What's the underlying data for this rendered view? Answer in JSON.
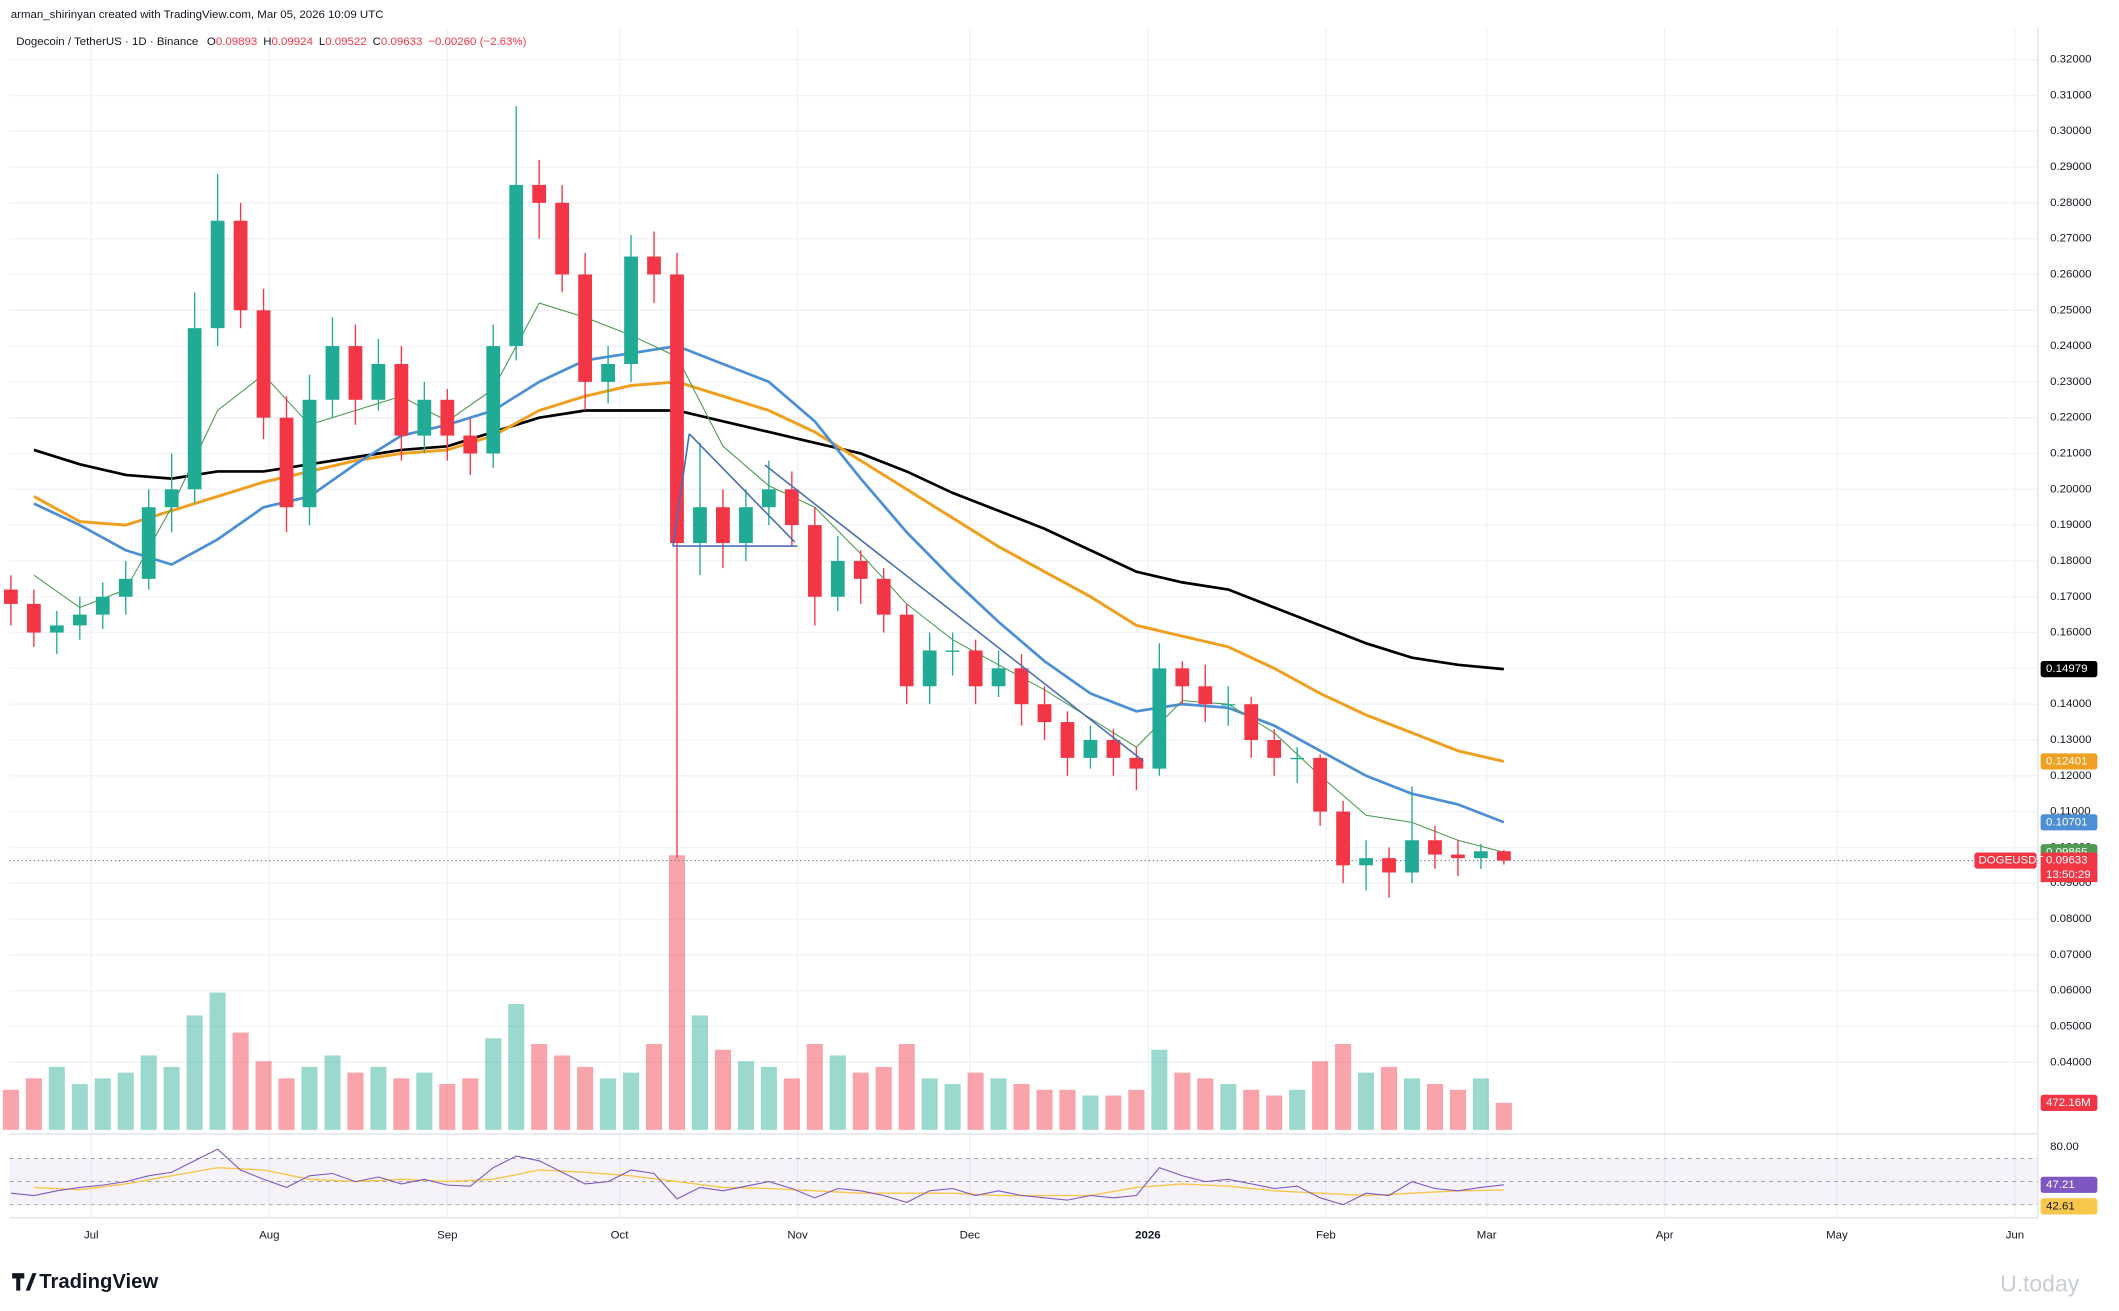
{
  "header": {
    "credit": "arman_shirinyan created with TradingView.com, Mar 05, 2026 10:09 UTC",
    "symbol": "Dogecoin / TetherUS · 1D · Binance",
    "ohlc": [
      {
        "key": "O",
        "value": "0.09893"
      },
      {
        "key": "H",
        "value": "0.09924"
      },
      {
        "key": "L",
        "value": "0.09522"
      },
      {
        "key": "C",
        "value": "0.09633"
      }
    ],
    "change": "−0.00260 (−2.63%)"
  },
  "chart_data": {
    "type": "candlestick",
    "x": [
      0,
      4,
      8,
      12,
      16,
      20,
      24,
      28,
      32,
      36,
      40,
      44,
      48,
      52,
      56,
      60,
      64,
      68,
      72,
      76,
      80,
      84,
      88,
      92,
      96,
      100,
      104,
      108,
      112,
      116,
      120,
      124,
      128,
      132,
      136,
      140,
      144,
      148,
      152,
      156,
      160,
      164,
      168,
      172,
      176,
      180,
      184,
      188,
      192,
      196,
      200,
      204,
      208,
      212,
      216,
      220,
      224,
      228,
      232,
      236,
      240,
      244,
      248,
      252,
      256,
      260
    ],
    "open": [
      0.172,
      0.168,
      0.16,
      0.162,
      0.165,
      0.17,
      0.175,
      0.195,
      0.2,
      0.245,
      0.275,
      0.25,
      0.22,
      0.195,
      0.225,
      0.24,
      0.225,
      0.235,
      0.215,
      0.225,
      0.215,
      0.21,
      0.24,
      0.285,
      0.28,
      0.26,
      0.23,
      0.235,
      0.265,
      0.26,
      0.185,
      0.195,
      0.185,
      0.195,
      0.2,
      0.19,
      0.17,
      0.18,
      0.175,
      0.165,
      0.145,
      0.155,
      0.155,
      0.145,
      0.15,
      0.14,
      0.135,
      0.125,
      0.13,
      0.125,
      0.122,
      0.15,
      0.145,
      0.14,
      0.14,
      0.13,
      0.125,
      0.125,
      0.11,
      0.095,
      0.097,
      0.093,
      0.102,
      0.098,
      0.097,
      0.09893
    ],
    "high": [
      0.176,
      0.172,
      0.166,
      0.17,
      0.174,
      0.18,
      0.2,
      0.21,
      0.255,
      0.288,
      0.28,
      0.256,
      0.226,
      0.232,
      0.248,
      0.246,
      0.242,
      0.24,
      0.23,
      0.228,
      0.22,
      0.246,
      0.307,
      0.292,
      0.285,
      0.266,
      0.24,
      0.271,
      0.272,
      0.266,
      0.213,
      0.2,
      0.2,
      0.208,
      0.205,
      0.195,
      0.187,
      0.183,
      0.178,
      0.168,
      0.16,
      0.16,
      0.158,
      0.155,
      0.154,
      0.145,
      0.138,
      0.134,
      0.133,
      0.128,
      0.157,
      0.152,
      0.151,
      0.145,
      0.142,
      0.133,
      0.128,
      0.126,
      0.113,
      0.102,
      0.1,
      0.117,
      0.106,
      0.102,
      0.101,
      0.09924
    ],
    "low": [
      0.162,
      0.156,
      0.154,
      0.158,
      0.161,
      0.165,
      0.172,
      0.188,
      0.196,
      0.24,
      0.245,
      0.214,
      0.188,
      0.19,
      0.22,
      0.218,
      0.222,
      0.208,
      0.21,
      0.208,
      0.204,
      0.206,
      0.236,
      0.27,
      0.255,
      0.222,
      0.224,
      0.23,
      0.252,
      0.097,
      0.176,
      0.178,
      0.18,
      0.19,
      0.184,
      0.162,
      0.166,
      0.168,
      0.16,
      0.14,
      0.14,
      0.148,
      0.14,
      0.142,
      0.134,
      0.13,
      0.12,
      0.122,
      0.12,
      0.116,
      0.12,
      0.14,
      0.135,
      0.134,
      0.125,
      0.12,
      0.118,
      0.106,
      0.09,
      0.088,
      0.086,
      0.09,
      0.094,
      0.092,
      0.094,
      0.09522
    ],
    "close": [
      0.168,
      0.16,
      0.162,
      0.165,
      0.17,
      0.175,
      0.195,
      0.2,
      0.245,
      0.275,
      0.25,
      0.22,
      0.195,
      0.225,
      0.24,
      0.225,
      0.235,
      0.215,
      0.225,
      0.215,
      0.21,
      0.24,
      0.285,
      0.28,
      0.26,
      0.23,
      0.235,
      0.265,
      0.26,
      0.185,
      0.195,
      0.185,
      0.195,
      0.2,
      0.19,
      0.17,
      0.18,
      0.175,
      0.165,
      0.145,
      0.155,
      0.155,
      0.145,
      0.15,
      0.14,
      0.135,
      0.125,
      0.13,
      0.125,
      0.122,
      0.15,
      0.145,
      0.14,
      0.14,
      0.13,
      0.125,
      0.125,
      0.11,
      0.095,
      0.097,
      0.093,
      0.102,
      0.098,
      0.097,
      0.09893,
      0.09633
    ],
    "up_color": "#22ab94",
    "down_color": "#f23645",
    "symbol_tag": "DOGEUSDT",
    "countdown": "13:50:29",
    "volume": {
      "values": [
        700,
        900,
        1100,
        800,
        900,
        1000,
        1300,
        1100,
        2000,
        2400,
        1700,
        1200,
        900,
        1100,
        1300,
        1000,
        1100,
        900,
        1000,
        800,
        900,
        1600,
        2200,
        1500,
        1300,
        1100,
        900,
        1000,
        1500,
        4800,
        2000,
        1400,
        1200,
        1100,
        900,
        1500,
        1300,
        1000,
        1100,
        1500,
        900,
        800,
        1000,
        900,
        800,
        700,
        700,
        600,
        600,
        700,
        1400,
        1000,
        900,
        800,
        700,
        600,
        700,
        1200,
        1500,
        1000,
        1100,
        900,
        800,
        700,
        900,
        472.16
      ],
      "value_labels": [
        null,
        null,
        null,
        null,
        null,
        null,
        null,
        null,
        null,
        null,
        null,
        null,
        null,
        null,
        null,
        null,
        null,
        null,
        null,
        null,
        null,
        null,
        null,
        null,
        null,
        null,
        null,
        null,
        null,
        null,
        null,
        null,
        null,
        null,
        null,
        null,
        null,
        null,
        null,
        null,
        null,
        null,
        null,
        null,
        null,
        null,
        null,
        null,
        null,
        null,
        null,
        null,
        null,
        null,
        null,
        null,
        null,
        null,
        null,
        null,
        null,
        null,
        null,
        null,
        null,
        "472.16M"
      ],
      "vlim": [
        0,
        6000
      ]
    },
    "ma_x": [
      4,
      12,
      20,
      28,
      36,
      44,
      52,
      60,
      68,
      76,
      84,
      92,
      100,
      108,
      116,
      124,
      132,
      140,
      148,
      156,
      164,
      172,
      180,
      188,
      196,
      204,
      212,
      220,
      228,
      236,
      244,
      252,
      260
    ],
    "ma": [
      {
        "color": "#000000",
        "width": 2,
        "values": [
          0.211,
          0.207,
          0.204,
          0.203,
          0.205,
          0.205,
          0.207,
          0.209,
          0.211,
          0.212,
          0.216,
          0.22,
          0.222,
          0.222,
          0.222,
          0.219,
          0.216,
          0.213,
          0.21,
          0.205,
          0.199,
          0.194,
          0.189,
          0.183,
          0.177,
          0.174,
          0.172,
          0.167,
          0.162,
          0.157,
          0.153,
          0.151,
          0.14979
        ]
      },
      {
        "color": "#f0a020",
        "width": 2.2,
        "values": [
          0.198,
          0.191,
          0.19,
          0.194,
          0.198,
          0.202,
          0.205,
          0.208,
          0.21,
          0.211,
          0.215,
          0.222,
          0.226,
          0.229,
          0.23,
          0.226,
          0.222,
          0.216,
          0.208,
          0.2,
          0.192,
          0.184,
          0.177,
          0.17,
          0.162,
          0.159,
          0.156,
          0.15,
          0.143,
          0.137,
          0.132,
          0.127,
          0.12401
        ]
      },
      {
        "color": "#4c8fd6",
        "width": 2,
        "values": [
          0.196,
          0.19,
          0.183,
          0.179,
          0.186,
          0.195,
          0.198,
          0.207,
          0.215,
          0.218,
          0.222,
          0.23,
          0.236,
          0.238,
          0.24,
          0.235,
          0.23,
          0.219,
          0.203,
          0.188,
          0.175,
          0.163,
          0.152,
          0.143,
          0.138,
          0.14,
          0.139,
          0.134,
          0.127,
          0.12,
          0.115,
          0.112,
          0.10701
        ]
      },
      {
        "color": "#4e9a52",
        "width": 0.8,
        "values": [
          0.176,
          0.167,
          0.172,
          0.195,
          0.222,
          0.232,
          0.218,
          0.222,
          0.226,
          0.219,
          0.228,
          0.252,
          0.248,
          0.243,
          0.237,
          0.212,
          0.201,
          0.195,
          0.182,
          0.168,
          0.158,
          0.151,
          0.144,
          0.136,
          0.128,
          0.141,
          0.14,
          0.132,
          0.12,
          0.109,
          0.107,
          0.102,
          0.09865
        ]
      }
    ],
    "xlim": [
      -0.25,
      353
    ],
    "ylim": [
      0.02,
      0.3253
    ],
    "xticks": [
      {
        "value": 14,
        "label": "Jul"
      },
      {
        "value": 45,
        "label": "Aug"
      },
      {
        "value": 76,
        "label": "Sep"
      },
      {
        "value": 106,
        "label": "Oct"
      },
      {
        "value": 137,
        "label": "Nov"
      },
      {
        "value": 167,
        "label": "Dec"
      },
      {
        "value": 198,
        "label": "2026"
      },
      {
        "value": 229,
        "label": "Feb"
      },
      {
        "value": 257,
        "label": "Mar"
      },
      {
        "value": 288,
        "label": "Apr"
      },
      {
        "value": 318,
        "label": "May"
      },
      {
        "value": 349,
        "label": "Jun"
      }
    ],
    "yticks": [
      {
        "value": 0.04,
        "label": "0.04000"
      },
      {
        "value": 0.05,
        "label": "0.05000"
      },
      {
        "value": 0.06,
        "label": "0.06000"
      },
      {
        "value": 0.07,
        "label": "0.07000"
      },
      {
        "value": 0.08,
        "label": "0.08000"
      },
      {
        "value": 0.09,
        "label": "0.09000"
      },
      {
        "value": 0.1,
        "label": "0.10000"
      },
      {
        "value": 0.11,
        "label": "0.11000"
      },
      {
        "value": 0.12,
        "label": "0.12000"
      },
      {
        "value": 0.13,
        "label": "0.13000"
      },
      {
        "value": 0.14,
        "label": "0.14000"
      },
      {
        "value": 0.15,
        "label": "0.15000"
      },
      {
        "value": 0.16,
        "label": "0.16000"
      },
      {
        "value": 0.17,
        "label": "0.17000"
      },
      {
        "value": 0.18,
        "label": "0.18000"
      },
      {
        "value": 0.19,
        "label": "0.19000"
      },
      {
        "value": 0.2,
        "label": "0.20000"
      },
      {
        "value": 0.21,
        "label": "0.21000"
      },
      {
        "value": 0.22,
        "label": "0.22000"
      },
      {
        "value": 0.23,
        "label": "0.23000"
      },
      {
        "value": 0.24,
        "label": "0.24000"
      },
      {
        "value": 0.25,
        "label": "0.25000"
      },
      {
        "value": 0.26,
        "label": "0.26000"
      },
      {
        "value": 0.27,
        "label": "0.27000"
      },
      {
        "value": 0.28,
        "label": "0.28000"
      },
      {
        "value": 0.29,
        "label": "0.29000"
      },
      {
        "value": 0.3,
        "label": "0.30000"
      },
      {
        "value": 0.31,
        "label": "0.31000"
      },
      {
        "value": 0.32,
        "label": "0.32000"
      }
    ],
    "grid": true,
    "rsi": {
      "color": "#7e57c2",
      "values": [
        40,
        38,
        42,
        45,
        47,
        50,
        55,
        58,
        68,
        78,
        60,
        52,
        45,
        55,
        57,
        50,
        54,
        48,
        52,
        47,
        46,
        62,
        72,
        68,
        58,
        48,
        50,
        60,
        57,
        35,
        45,
        42,
        46,
        50,
        44,
        36,
        44,
        42,
        38,
        32,
        42,
        44,
        38,
        42,
        38,
        36,
        34,
        38,
        36,
        38,
        62,
        55,
        50,
        52,
        48,
        44,
        46,
        36,
        30,
        40,
        38,
        50,
        44,
        42,
        45,
        47.21
      ],
      "ma_color": "#f7c64b",
      "ma_values": [
        45,
        43,
        48,
        55,
        62,
        60,
        52,
        50,
        52,
        50,
        52,
        60,
        58,
        55,
        50,
        45,
        44,
        42,
        40,
        40,
        40,
        38,
        38,
        38,
        45,
        48,
        46,
        42,
        40,
        38,
        40,
        42,
        42.61
      ],
      "ylim": [
        20,
        90
      ],
      "yticks": [
        {
          "value": 80,
          "label": "80.00"
        }
      ],
      "levels": [
        30,
        50,
        70
      ]
    }
  },
  "footer": {
    "logo": "TradingView",
    "watermark": "U.today"
  }
}
